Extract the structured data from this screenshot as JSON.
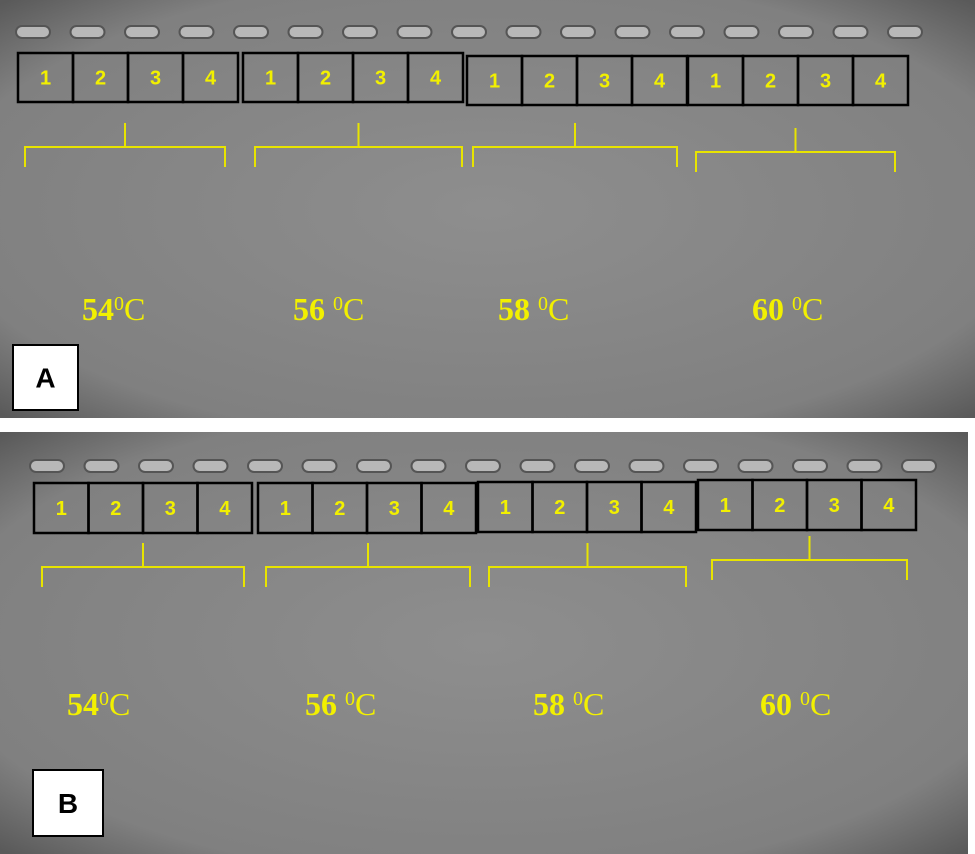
{
  "panels": [
    {
      "label": "A",
      "groups": [
        {
          "lanes": [
            "1",
            "2",
            "3",
            "4"
          ],
          "temperature": {
            "number": "54",
            "degree": "0",
            "unit": "C"
          }
        },
        {
          "lanes": [
            "1",
            "2",
            "3",
            "4"
          ],
          "temperature": {
            "number": "56",
            "degree": "0",
            "unit": "C"
          }
        },
        {
          "lanes": [
            "1",
            "2",
            "3",
            "4"
          ],
          "temperature": {
            "number": "58",
            "degree": "0",
            "unit": "C"
          }
        },
        {
          "lanes": [
            "1",
            "2",
            "3",
            "4"
          ],
          "temperature": {
            "number": "60",
            "degree": "0",
            "unit": "C"
          }
        }
      ]
    },
    {
      "label": "B",
      "groups": [
        {
          "lanes": [
            "1",
            "2",
            "3",
            "4"
          ],
          "temperature": {
            "number": "54",
            "degree": "0",
            "unit": "C"
          }
        },
        {
          "lanes": [
            "1",
            "2",
            "3",
            "4"
          ],
          "temperature": {
            "number": "56",
            "degree": "0",
            "unit": "C"
          }
        },
        {
          "lanes": [
            "1",
            "2",
            "3",
            "4"
          ],
          "temperature": {
            "number": "58",
            "degree": "0",
            "unit": "C"
          }
        },
        {
          "lanes": [
            "1",
            "2",
            "3",
            "4"
          ],
          "temperature": {
            "number": "60",
            "degree": "0",
            "unit": "C"
          }
        }
      ]
    }
  ]
}
